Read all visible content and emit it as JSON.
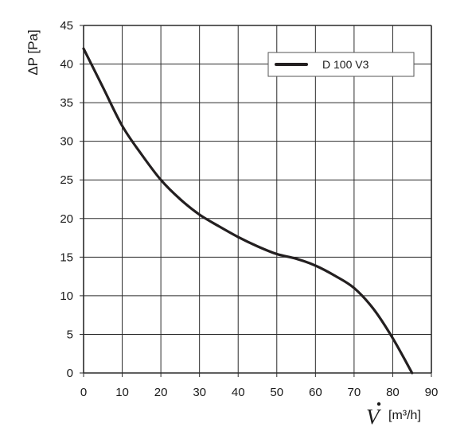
{
  "chart_data": {
    "type": "line",
    "xlabel": {
      "symbol": "V",
      "unit": "[m³/h]"
    },
    "ylabel": "ΔP [Pa]",
    "xlim": [
      0,
      90
    ],
    "ylim": [
      0,
      45
    ],
    "x_ticks": [
      "0",
      "10",
      "20",
      "30",
      "40",
      "50",
      "60",
      "70",
      "80",
      "90"
    ],
    "y_ticks": [
      "0",
      "5",
      "10",
      "15",
      "20",
      "25",
      "30",
      "35",
      "40",
      "45"
    ],
    "grid": true,
    "legend_position": "top-right",
    "series": [
      {
        "name": "D 100 V3",
        "color": "#231f20",
        "x": [
          0,
          5,
          10,
          15,
          20,
          25,
          30,
          35,
          40,
          45,
          50,
          55,
          60,
          65,
          70,
          75,
          80,
          85
        ],
        "y": [
          42,
          37,
          32,
          28.3,
          25,
          22.5,
          20.5,
          19,
          17.6,
          16.4,
          15.4,
          14.8,
          13.9,
          12.6,
          11,
          8.3,
          4.5,
          0
        ]
      }
    ]
  }
}
